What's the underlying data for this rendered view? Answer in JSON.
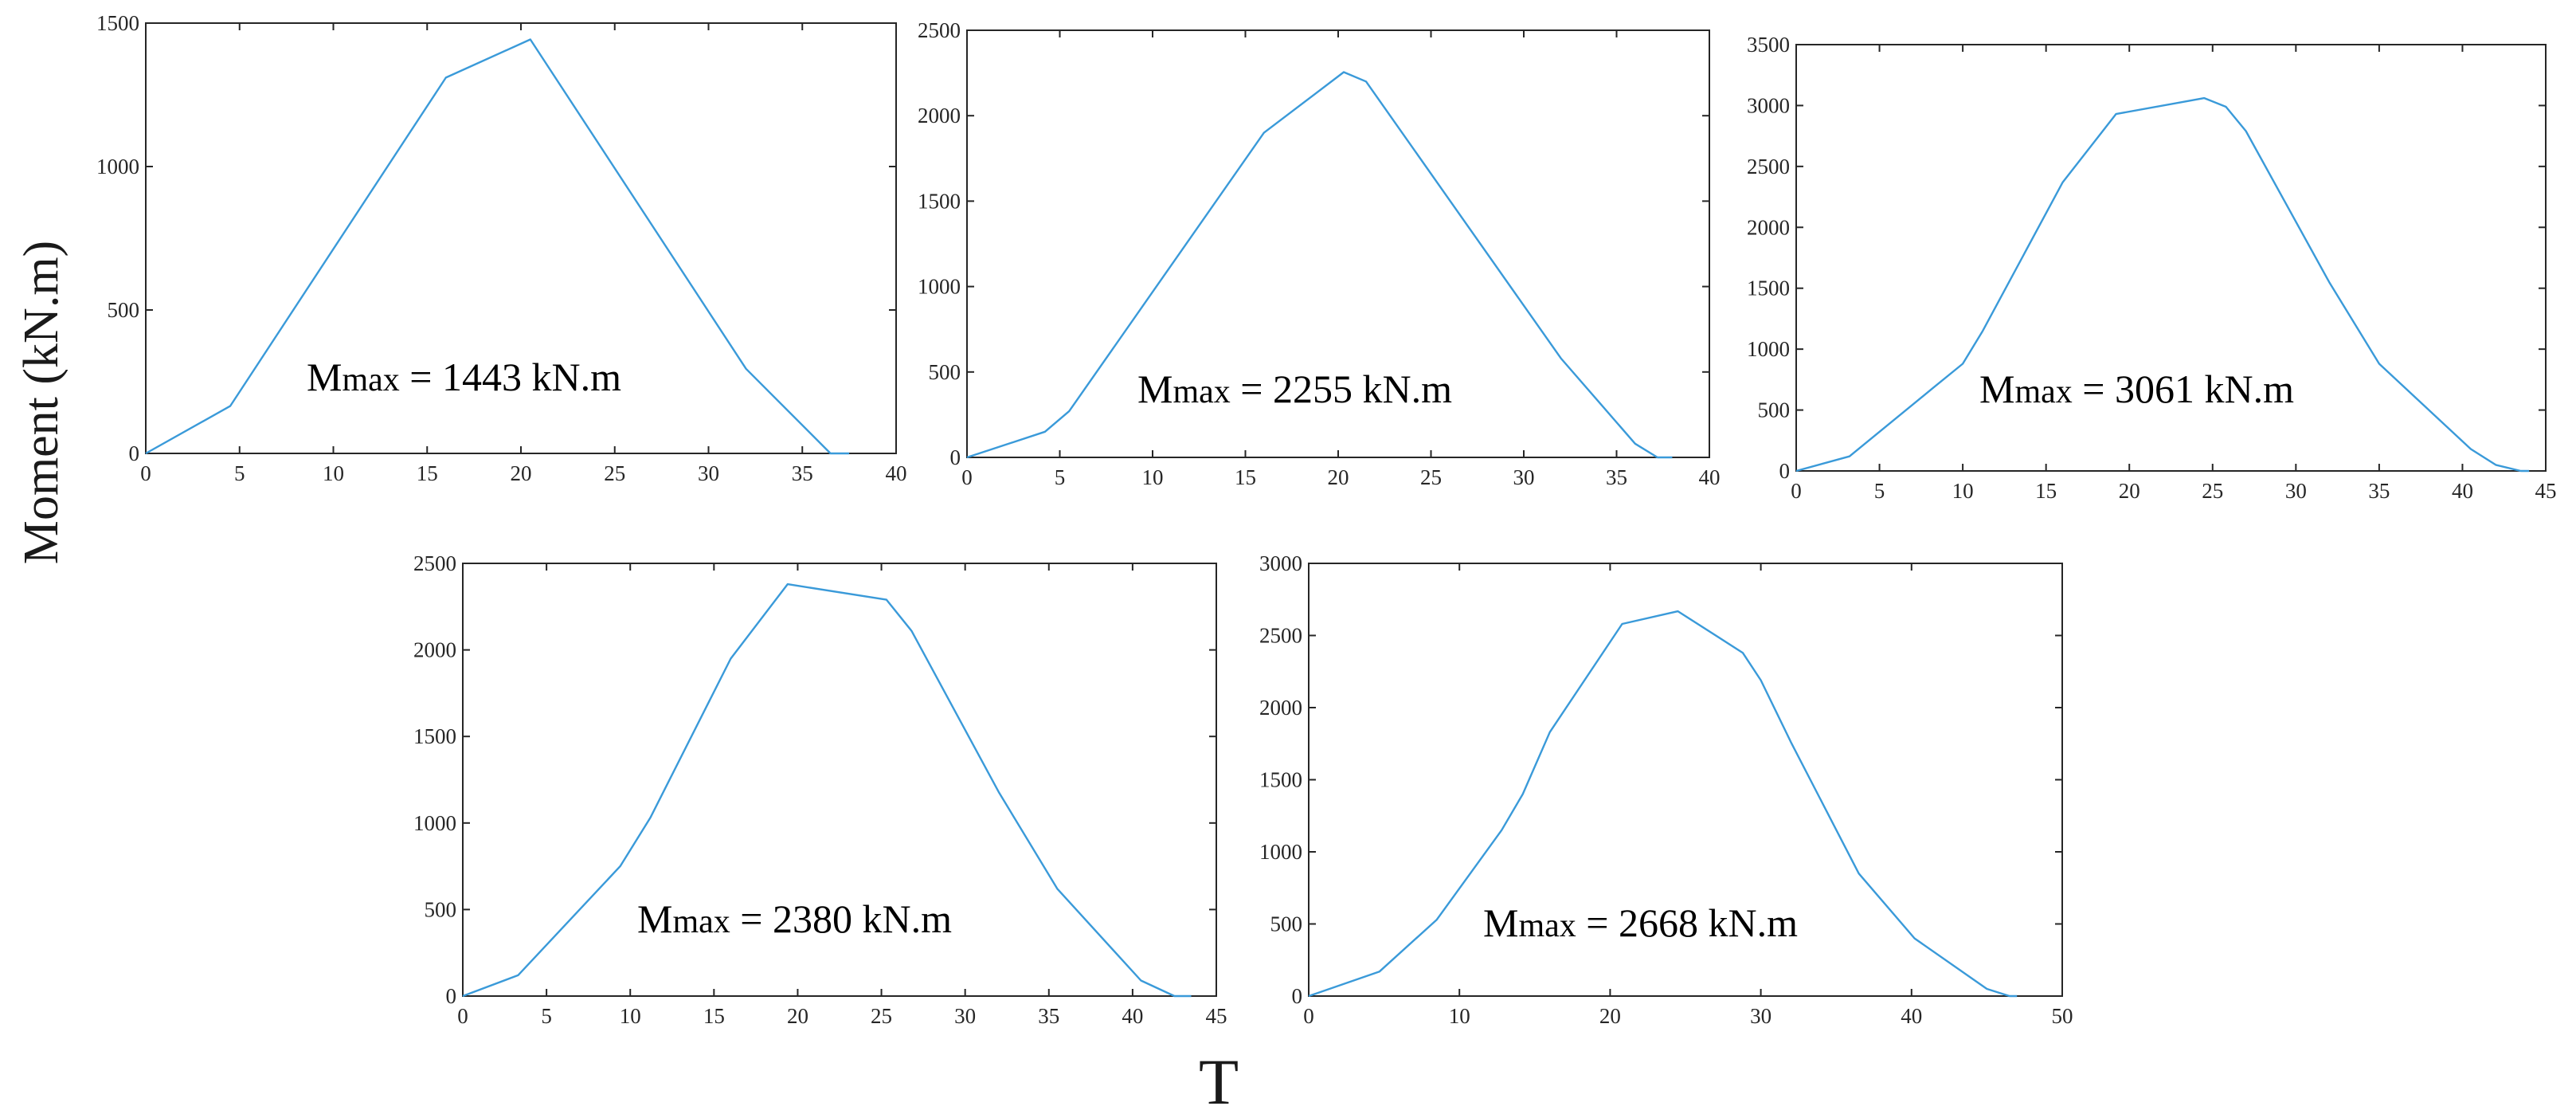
{
  "figure": {
    "ylabel": "Moment (kN.m)",
    "xlabel": "T",
    "line_color": "#3a9ad9"
  },
  "chart_data": [
    {
      "type": "line",
      "annotation": {
        "m": "M",
        "sub": "max",
        "value": " = 1443 kN.m"
      },
      "xlim": [
        0,
        40
      ],
      "ylim": [
        0,
        1500
      ],
      "xticks": [
        0,
        5,
        10,
        15,
        20,
        25,
        30,
        35,
        40
      ],
      "yticks": [
        0,
        500,
        1000,
        1500
      ],
      "series": [
        {
          "x": [
            0,
            4.5,
            16,
            20.5,
            32,
            36.5,
            37.5
          ],
          "y": [
            0,
            165,
            1310,
            1443,
            295,
            0,
            0
          ]
        }
      ]
    },
    {
      "type": "line",
      "annotation": {
        "m": "M",
        "sub": "max",
        "value": " = 2255 kN.m"
      },
      "xlim": [
        0,
        40
      ],
      "ylim": [
        0,
        2500
      ],
      "xticks": [
        0,
        5,
        10,
        15,
        20,
        25,
        30,
        35,
        40
      ],
      "yticks": [
        0,
        500,
        1000,
        1500,
        2000,
        2500
      ],
      "series": [
        {
          "x": [
            0,
            4.2,
            5.5,
            16,
            20.3,
            21.5,
            32,
            36,
            37.2,
            38
          ],
          "y": [
            0,
            150,
            270,
            1900,
            2255,
            2200,
            580,
            80,
            0,
            0
          ]
        }
      ]
    },
    {
      "type": "line",
      "annotation": {
        "m": "M",
        "sub": "max",
        "value": " = 3061 kN.m"
      },
      "xlim": [
        0,
        45
      ],
      "ylim": [
        0,
        3500
      ],
      "xticks": [
        0,
        5,
        10,
        15,
        20,
        25,
        30,
        35,
        40,
        45
      ],
      "yticks": [
        0,
        500,
        1000,
        1500,
        2000,
        2500,
        3000,
        3500
      ],
      "series": [
        {
          "x": [
            0,
            3.2,
            8.2,
            10,
            11.2,
            16,
            19.2,
            24.5,
            25.8,
            27,
            32,
            35,
            40.5,
            42,
            43.5,
            44
          ],
          "y": [
            0,
            120,
            680,
            880,
            1150,
            2370,
            2930,
            3061,
            2990,
            2790,
            1550,
            880,
            180,
            50,
            0,
            0
          ]
        }
      ]
    },
    {
      "type": "line",
      "annotation": {
        "m": "M",
        "sub": "max",
        "value": " = 2380 kN.m"
      },
      "xlim": [
        0,
        45
      ],
      "ylim": [
        0,
        2500
      ],
      "xticks": [
        0,
        5,
        10,
        15,
        20,
        25,
        30,
        35,
        40,
        45
      ],
      "yticks": [
        0,
        500,
        1000,
        1500,
        2000,
        2500
      ],
      "series": [
        {
          "x": [
            0,
            3.3,
            9.4,
            11.2,
            16,
            19.4,
            25.3,
            26.8,
            32,
            35.5,
            40.5,
            42.5,
            43.5
          ],
          "y": [
            0,
            120,
            750,
            1030,
            1950,
            2380,
            2290,
            2110,
            1180,
            620,
            90,
            0,
            0
          ]
        }
      ]
    },
    {
      "type": "line",
      "annotation": {
        "m": "M",
        "sub": "max",
        "value": " = 2668  kN.m"
      },
      "xlim": [
        0,
        50
      ],
      "ylim": [
        0,
        3000
      ],
      "xticks": [
        0,
        10,
        20,
        30,
        40,
        50
      ],
      "yticks": [
        0,
        500,
        1000,
        1500,
        2000,
        2500,
        3000
      ],
      "series": [
        {
          "x": [
            0,
            4.7,
            8.5,
            12.8,
            14.2,
            16,
            20.8,
            24.5,
            28.8,
            30,
            32,
            36.5,
            40.2,
            45,
            46.5,
            47
          ],
          "y": [
            0,
            170,
            530,
            1150,
            1400,
            1830,
            2580,
            2668,
            2380,
            2190,
            1760,
            850,
            400,
            50,
            0,
            0
          ]
        }
      ]
    }
  ]
}
